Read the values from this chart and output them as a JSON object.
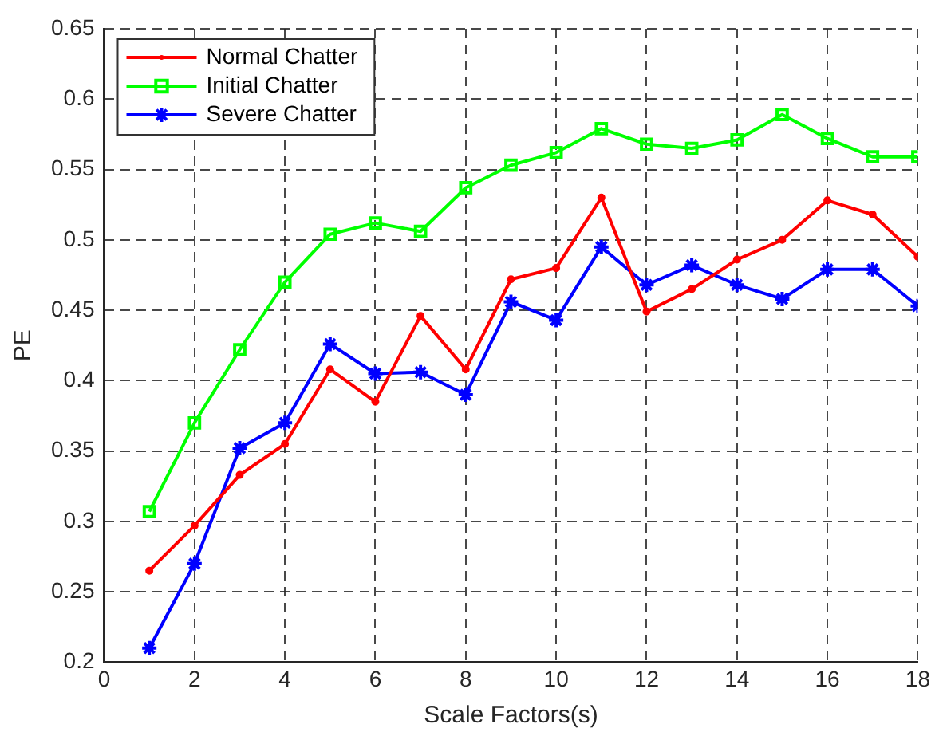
{
  "chart_data": {
    "type": "line",
    "xlabel": "Scale Factors(s)",
    "ylabel": "PE",
    "x": [
      1,
      2,
      3,
      4,
      5,
      6,
      7,
      8,
      9,
      10,
      11,
      12,
      13,
      14,
      15,
      16,
      17,
      18
    ],
    "series": [
      {
        "name": "Normal Chatter",
        "color": "#ff0000",
        "marker": "circle",
        "values": [
          0.265,
          0.297,
          0.333,
          0.355,
          0.408,
          0.385,
          0.446,
          0.408,
          0.472,
          0.48,
          0.53,
          0.449,
          0.465,
          0.486,
          0.5,
          0.528,
          0.518,
          0.488
        ]
      },
      {
        "name": "Initial Chatter",
        "color": "#00ff00",
        "marker": "square",
        "values": [
          0.307,
          0.37,
          0.422,
          0.47,
          0.504,
          0.512,
          0.506,
          0.537,
          0.553,
          0.562,
          0.579,
          0.568,
          0.565,
          0.571,
          0.589,
          0.572,
          0.559,
          0.559
        ]
      },
      {
        "name": "Severe Chatter",
        "color": "#0000ff",
        "marker": "cross",
        "values": [
          0.21,
          0.27,
          0.352,
          0.37,
          0.426,
          0.405,
          0.406,
          0.39,
          0.456,
          0.443,
          0.495,
          0.468,
          0.482,
          0.468,
          0.458,
          0.479,
          0.479,
          0.453
        ]
      }
    ],
    "xlim": [
      0,
      18
    ],
    "xticks": [
      0,
      2,
      4,
      6,
      8,
      10,
      12,
      14,
      16,
      18
    ],
    "ylim": [
      0.2,
      0.65
    ],
    "yticks": [
      0.2,
      0.25,
      0.3,
      0.35,
      0.4,
      0.45,
      0.5,
      0.55,
      0.6,
      0.65
    ],
    "grid": true,
    "legend": "top left",
    "line_style": "solid"
  }
}
